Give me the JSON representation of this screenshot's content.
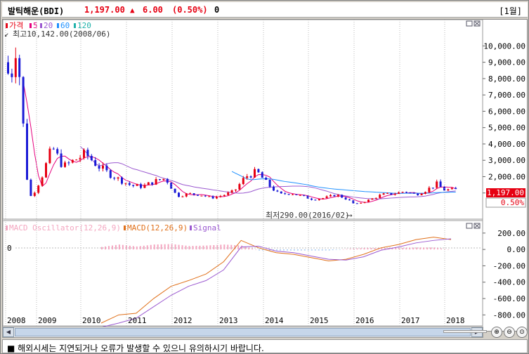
{
  "title": {
    "name": "발틱해운(BDI)",
    "price": "1,197.00",
    "arrow": "▲",
    "change": "6.00",
    "percent": "(0.50%)",
    "volume": "0",
    "period": "[1월]"
  },
  "price_pane": {
    "legend": [
      "가격",
      "5",
      "20",
      "60",
      "120"
    ],
    "legend_colors": [
      "#e60012",
      "#e6007e",
      "#9b59d0",
      "#1e90ff",
      "#20b2aa"
    ],
    "high_label": "최고10,142.00(2008/06)",
    "low_label": "최저290.00(2016/02)",
    "current_price": "1,197.00",
    "current_pct": "0.50%",
    "y_ticks": [
      "10,000.00",
      "9,000.00",
      "8,000.00",
      "7,000.00",
      "6,000.00",
      "5,000.00",
      "4,000.00",
      "3,000.00",
      "2,000.00",
      "1,000.00"
    ]
  },
  "macd_pane": {
    "legend": [
      "MACD Oscillator(12,26,9)",
      "MACD(12,26,9)",
      "Signal"
    ],
    "legend_colors": [
      "#f4a6c0",
      "#e0701a",
      "#9b59d0"
    ],
    "zero_label": "0",
    "y_ticks": [
      "200.00",
      "0.00",
      "-200.00",
      "-400.00",
      "-600.00",
      "-800.00"
    ]
  },
  "x_axis": [
    "2008",
    "2009",
    "2010",
    "2011",
    "2012",
    "2013",
    "2014",
    "2015",
    "2016",
    "2017",
    "2018"
  ],
  "status_text": "■ 해외시세는 지연되거나 오류가 발생할 수 있으니 유의하시기 바랍니다.",
  "colors": {
    "up": "#e60012",
    "down": "#1a1ad6",
    "background": "#ffffff"
  },
  "chart_data": {
    "type": "line",
    "title": "발틱해운(BDI)",
    "x": [
      "2008-01",
      "2008-04",
      "2008-06",
      "2008-08",
      "2008-10",
      "2008-12",
      "2009-03",
      "2009-06",
      "2009-09",
      "2009-12",
      "2010-03",
      "2010-06",
      "2010-09",
      "2010-12",
      "2011-03",
      "2011-06",
      "2011-09",
      "2011-12",
      "2012-03",
      "2012-06",
      "2012-09",
      "2012-12",
      "2013-03",
      "2013-06",
      "2013-09",
      "2013-12",
      "2014-03",
      "2014-06",
      "2014-09",
      "2014-12",
      "2015-03",
      "2015-06",
      "2015-09",
      "2015-12",
      "2016-02",
      "2016-06",
      "2016-09",
      "2016-12",
      "2017-03",
      "2017-06",
      "2017-09",
      "2017-12",
      "2018-01"
    ],
    "series": [
      {
        "name": "가격",
        "values": [
          9000,
          8000,
          10142,
          7500,
          2200,
          700,
          1900,
          3800,
          2600,
          3000,
          3400,
          2700,
          2200,
          1800,
          1450,
          1400,
          1700,
          1900,
          800,
          950,
          900,
          700,
          850,
          1100,
          2000,
          2300,
          1500,
          900,
          1000,
          800,
          600,
          700,
          900,
          600,
          290,
          600,
          900,
          950,
          1100,
          900,
          1200,
          1600,
          1197
        ]
      }
    ],
    "ylim": [
      0,
      10500
    ],
    "macd": {
      "series": [
        {
          "name": "MACD(12,26,9)",
          "values": [
            -900,
            -800,
            -780,
            -600,
            -450,
            -380,
            -300,
            -150,
            110,
            20,
            -40,
            -60,
            -100,
            -140,
            -120,
            -60,
            20,
            60,
            120,
            150,
            120
          ]
        },
        {
          "name": "Signal",
          "values": [
            -950,
            -900,
            -840,
            -700,
            -560,
            -450,
            -380,
            -250,
            30,
            40,
            -20,
            -40,
            -80,
            -120,
            -130,
            -90,
            -10,
            30,
            80,
            110,
            130
          ]
        }
      ],
      "ylim": [
        -900,
        250
      ]
    }
  }
}
